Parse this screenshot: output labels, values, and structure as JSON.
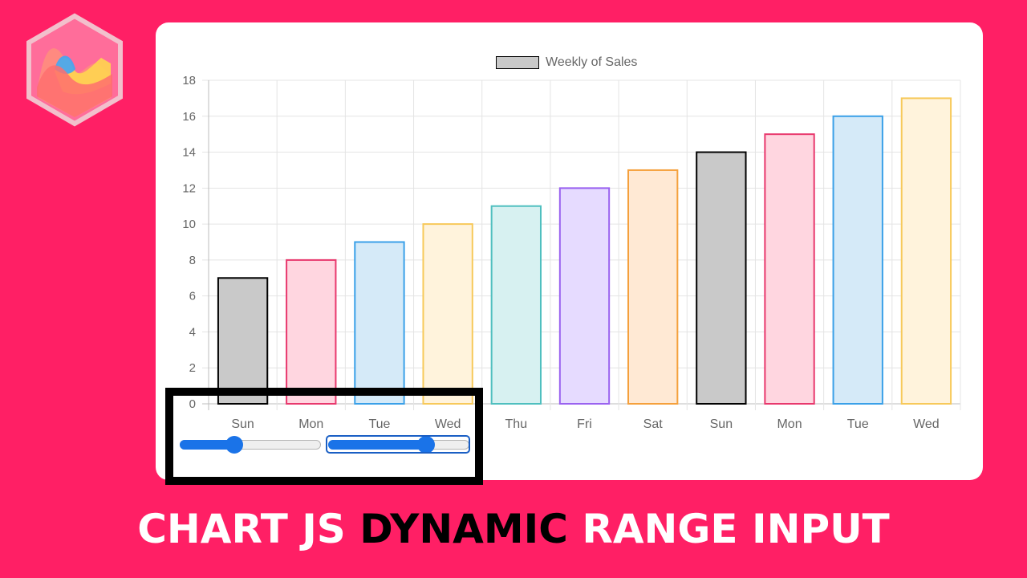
{
  "headline": {
    "part1": "CHART JS",
    "part2": "DYNAMIC",
    "part3": "RANGE INPUT"
  },
  "colors": {
    "background": "#ff1f65",
    "slider_accent": "#1a73e8"
  },
  "legend": {
    "label": "Weekly of Sales"
  },
  "sliders": [
    {
      "name": "start-range-slider",
      "value_fraction": 0.38
    },
    {
      "name": "end-range-slider",
      "value_fraction": 0.69
    }
  ],
  "chart_data": {
    "type": "bar",
    "categories": [
      "Sun",
      "Mon",
      "Tue",
      "Wed",
      "Thu",
      "Fri",
      "Sat",
      "Sun",
      "Mon",
      "Tue",
      "Wed"
    ],
    "series": [
      {
        "name": "Weekly of Sales",
        "values": [
          7,
          8,
          9,
          10,
          11,
          12,
          13,
          14,
          15,
          16,
          17
        ]
      }
    ],
    "bar_fill_colors": [
      "#c9c9c9",
      "#ffd6e0",
      "#d5eaf8",
      "#fff3dc",
      "#d7f1f1",
      "#e6dbff",
      "#ffe9d4",
      "#c9c9c9",
      "#ffd6e0",
      "#d5eaf8",
      "#fff3dc"
    ],
    "bar_border_colors": [
      "#000000",
      "#e8386d",
      "#3aa0e8",
      "#f7c95a",
      "#4fbfbf",
      "#9a62f0",
      "#f5a03c",
      "#000000",
      "#e8386d",
      "#3aa0e8",
      "#f7c95a"
    ],
    "ylim": [
      0,
      18
    ],
    "yticks": [
      0,
      2,
      4,
      6,
      8,
      10,
      12,
      14,
      16,
      18
    ],
    "grid": true,
    "legend_position": "top-center"
  }
}
